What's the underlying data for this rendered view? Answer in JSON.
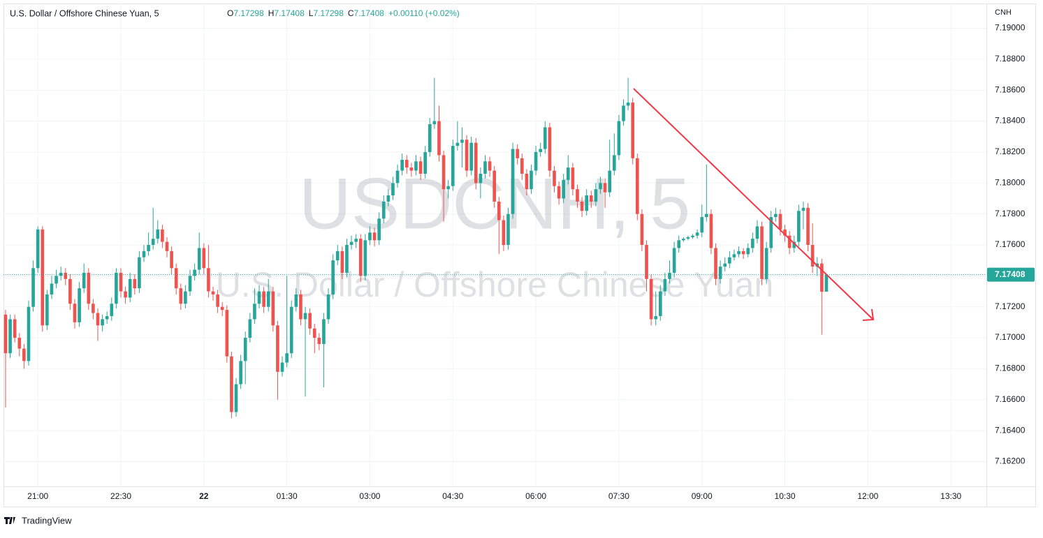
{
  "chart_data": {
    "type": "candlestick",
    "title": "U.S. Dollar / Offshore Chinese Yuan, 5",
    "legend": [
      {
        "label": "O",
        "value": 7.17298
      },
      {
        "label": "H",
        "value": 7.17408
      },
      {
        "label": "L",
        "value": 7.17298
      },
      {
        "label": "C",
        "value": 7.17408
      }
    ],
    "change": "+0.00110 (+0.02%)",
    "watermark": "USDCNH, 5",
    "watermark_subtitle": "U.S. Dollar / Offshore Chinese Yuan",
    "y_axis_label": "CNH",
    "branding": "TradingView",
    "up_color": "#26a69a",
    "down_color": "#ef5350",
    "grid": true,
    "last_price": 7.17408,
    "ylim": [
      7.1604,
      7.1916
    ],
    "yticks": [
      {
        "value": 7.162,
        "label": "7.16200"
      },
      {
        "value": 7.164,
        "label": "7.16400"
      },
      {
        "value": 7.166,
        "label": "7.16600"
      },
      {
        "value": 7.168,
        "label": "7.16800"
      },
      {
        "value": 7.17,
        "label": "7.17000"
      },
      {
        "value": 7.172,
        "label": "7.17200"
      },
      {
        "value": 7.174,
        "label": "7.17400"
      },
      {
        "value": 7.176,
        "label": "7.17600"
      },
      {
        "value": 7.178,
        "label": "7.17800"
      },
      {
        "value": 7.18,
        "label": "7.18000"
      },
      {
        "value": 7.182,
        "label": "7.18200"
      },
      {
        "value": 7.184,
        "label": "7.18400"
      },
      {
        "value": 7.186,
        "label": "7.18600"
      },
      {
        "value": 7.188,
        "label": "7.18800"
      },
      {
        "value": 7.19,
        "label": "7.19000"
      }
    ],
    "xlim": [
      -0.45,
      212.7
    ],
    "xticks": [
      {
        "value": 7,
        "label": "21:00"
      },
      {
        "value": 25,
        "label": "22:30"
      },
      {
        "value": 43,
        "label": "22"
      },
      {
        "value": 61,
        "label": "01:30"
      },
      {
        "value": 79,
        "label": "03:00"
      },
      {
        "value": 97,
        "label": "04:30"
      },
      {
        "value": 115,
        "label": "06:00"
      },
      {
        "value": 133,
        "label": "07:30"
      },
      {
        "value": 151,
        "label": "09:00"
      },
      {
        "value": 169,
        "label": "10:30"
      },
      {
        "value": 187,
        "label": "12:00"
      },
      {
        "value": 205,
        "label": "13:30"
      }
    ],
    "ohlc": [
      [
        7.1715,
        7.1718,
        7.1655,
        7.169
      ],
      [
        7.169,
        7.1715,
        7.1687,
        7.1712
      ],
      [
        7.1712,
        7.1715,
        7.1697,
        7.17
      ],
      [
        7.17,
        7.1703,
        7.1688,
        7.1693
      ],
      [
        7.1693,
        7.1696,
        7.168,
        7.1685
      ],
      [
        7.1685,
        7.1724,
        7.1682,
        7.172
      ],
      [
        7.172,
        7.175,
        7.1717,
        7.1745
      ],
      [
        7.1745,
        7.1772,
        7.1742,
        7.177
      ],
      [
        7.177,
        7.1772,
        7.1704,
        7.1708
      ],
      [
        7.1708,
        7.1731,
        7.1705,
        7.1728
      ],
      [
        7.1728,
        7.174,
        7.1725,
        7.1735
      ],
      [
        7.1735,
        7.1744,
        7.1732,
        7.174
      ],
      [
        7.174,
        7.1746,
        7.1737,
        7.1742
      ],
      [
        7.1742,
        7.1745,
        7.1734,
        7.1738
      ],
      [
        7.1738,
        7.1741,
        7.1718,
        7.1722
      ],
      [
        7.1722,
        7.1725,
        7.1706,
        7.171
      ],
      [
        7.171,
        7.1736,
        7.1707,
        7.1732
      ],
      [
        7.1732,
        7.1748,
        7.1729,
        7.1742
      ],
      [
        7.1742,
        7.1745,
        7.1718,
        7.1722
      ],
      [
        7.1722,
        7.1725,
        7.1712,
        7.1716
      ],
      [
        7.1716,
        7.1719,
        7.1698,
        7.1708
      ],
      [
        7.1708,
        7.1715,
        7.1704,
        7.1712
      ],
      [
        7.1712,
        7.1717,
        7.1709,
        7.1714
      ],
      [
        7.1714,
        7.1726,
        7.1711,
        7.1722
      ],
      [
        7.1722,
        7.1745,
        7.1719,
        7.1742
      ],
      [
        7.1742,
        7.1745,
        7.1726,
        7.173
      ],
      [
        7.173,
        7.1733,
        7.1722,
        7.1726
      ],
      [
        7.1726,
        7.1742,
        7.1723,
        7.1738
      ],
      [
        7.1738,
        7.1741,
        7.1728,
        7.1732
      ],
      [
        7.1732,
        7.1756,
        7.1729,
        7.1752
      ],
      [
        7.1752,
        7.176,
        7.1749,
        7.1756
      ],
      [
        7.1756,
        7.1768,
        7.1753,
        7.176
      ],
      [
        7.176,
        7.1784,
        7.1757,
        7.1764
      ],
      [
        7.1764,
        7.1776,
        7.1761,
        7.177
      ],
      [
        7.177,
        7.1773,
        7.1758,
        7.1762
      ],
      [
        7.1762,
        7.1765,
        7.1752,
        7.1756
      ],
      [
        7.1756,
        7.1759,
        7.1741,
        7.1745
      ],
      [
        7.1745,
        7.1748,
        7.1728,
        7.1732
      ],
      [
        7.1732,
        7.1735,
        7.1718,
        7.1722
      ],
      [
        7.1722,
        7.1734,
        7.1719,
        7.173
      ],
      [
        7.173,
        7.1744,
        7.1727,
        7.174
      ],
      [
        7.174,
        7.1748,
        7.1737,
        7.1744
      ],
      [
        7.1744,
        7.1768,
        7.1741,
        7.1758
      ],
      [
        7.1758,
        7.1761,
        7.1741,
        7.1745
      ],
      [
        7.1745,
        7.176,
        7.1726,
        7.173
      ],
      [
        7.173,
        7.1733,
        7.1724,
        7.1728
      ],
      [
        7.1728,
        7.1731,
        7.1716,
        7.172
      ],
      [
        7.172,
        7.1723,
        7.1714,
        7.1718
      ],
      [
        7.1718,
        7.1721,
        7.1684,
        7.1688
      ],
      [
        7.1688,
        7.1691,
        7.1648,
        7.1652
      ],
      [
        7.1652,
        7.1674,
        7.1649,
        7.167
      ],
      [
        7.167,
        7.1689,
        7.1667,
        7.1685
      ],
      [
        7.1685,
        7.1704,
        7.167,
        7.17
      ],
      [
        7.17,
        7.1716,
        7.1697,
        7.1712
      ],
      [
        7.1712,
        7.1732,
        7.1709,
        7.1722
      ],
      [
        7.1722,
        7.1734,
        7.1719,
        7.173
      ],
      [
        7.173,
        7.1733,
        7.1716,
        7.172
      ],
      [
        7.172,
        7.1738,
        7.1717,
        7.173
      ],
      [
        7.173,
        7.1733,
        7.1704,
        7.1708
      ],
      [
        7.1708,
        7.1711,
        7.166,
        7.1678
      ],
      [
        7.1678,
        7.1688,
        7.1675,
        7.1684
      ],
      [
        7.1684,
        7.174,
        7.1681,
        7.169
      ],
      [
        7.169,
        7.1724,
        7.1687,
        7.172
      ],
      [
        7.172,
        7.1732,
        7.1717,
        7.1728
      ],
      [
        7.1728,
        7.1731,
        7.1708,
        7.1712
      ],
      [
        7.1712,
        7.172,
        7.1662,
        7.1716
      ],
      [
        7.1716,
        7.1719,
        7.1702,
        7.1706
      ],
      [
        7.1706,
        7.1709,
        7.169,
        7.17
      ],
      [
        7.17,
        7.1703,
        7.1692,
        7.1696
      ],
      [
        7.1696,
        7.1716,
        7.1668,
        7.1712
      ],
      [
        7.1712,
        7.1732,
        7.1709,
        7.1728
      ],
      [
        7.1728,
        7.1754,
        7.1725,
        7.175
      ],
      [
        7.175,
        7.176,
        7.1747,
        7.1756
      ],
      [
        7.1756,
        7.1759,
        7.1738,
        7.1742
      ],
      [
        7.1742,
        7.1764,
        7.1739,
        7.176
      ],
      [
        7.176,
        7.1766,
        7.1757,
        7.1762
      ],
      [
        7.1762,
        7.1767,
        7.1758,
        7.1764
      ],
      [
        7.1764,
        7.1767,
        7.1736,
        7.174
      ],
      [
        7.174,
        7.1767,
        7.1737,
        7.1763
      ],
      [
        7.1763,
        7.1772,
        7.176,
        7.1768
      ],
      [
        7.1768,
        7.1771,
        7.1759,
        7.1763
      ],
      [
        7.1763,
        7.1781,
        7.176,
        7.1777
      ],
      [
        7.1777,
        7.1792,
        7.1774,
        7.1788
      ],
      [
        7.1788,
        7.1796,
        7.1785,
        7.1792
      ],
      [
        7.1792,
        7.1804,
        7.1789,
        7.18
      ],
      [
        7.18,
        7.1812,
        7.1797,
        7.1808
      ],
      [
        7.1808,
        7.1819,
        7.1805,
        7.1815
      ],
      [
        7.1815,
        7.1818,
        7.1806,
        7.181
      ],
      [
        7.181,
        7.1813,
        7.1804,
        7.1808
      ],
      [
        7.1808,
        7.1818,
        7.1805,
        7.1814
      ],
      [
        7.1814,
        7.1817,
        7.1802,
        7.1806
      ],
      [
        7.1806,
        7.1824,
        7.1803,
        7.182
      ],
      [
        7.182,
        7.1842,
        7.1817,
        7.1838
      ],
      [
        7.1838,
        7.1868,
        7.1835,
        7.184
      ],
      [
        7.184,
        7.185,
        7.1814,
        7.1818
      ],
      [
        7.1818,
        7.1821,
        7.1775,
        7.1796
      ],
      [
        7.1796,
        7.1802,
        7.179,
        7.1798
      ],
      [
        7.1798,
        7.1828,
        7.1795,
        7.1824
      ],
      [
        7.1824,
        7.184,
        7.1821,
        7.1826
      ],
      [
        7.1826,
        7.1836,
        7.181,
        7.1828
      ],
      [
        7.1828,
        7.1831,
        7.1804,
        7.1808
      ],
      [
        7.1808,
        7.183,
        7.1805,
        7.1826
      ],
      [
        7.1826,
        7.1829,
        7.1796,
        7.18
      ],
      [
        7.18,
        7.181,
        7.179,
        7.1806
      ],
      [
        7.1806,
        7.1818,
        7.1803,
        7.1814
      ],
      [
        7.1814,
        7.1817,
        7.1804,
        7.1808
      ],
      [
        7.1808,
        7.1811,
        7.1784,
        7.1788
      ],
      [
        7.1788,
        7.1791,
        7.1754,
        7.1776
      ],
      [
        7.1776,
        7.1779,
        7.1756,
        7.176
      ],
      [
        7.176,
        7.1784,
        7.1757,
        7.178
      ],
      [
        7.178,
        7.1826,
        7.1777,
        7.1822
      ],
      [
        7.1822,
        7.1825,
        7.1812,
        7.1816
      ],
      [
        7.1816,
        7.1819,
        7.1802,
        7.1806
      ],
      [
        7.1806,
        7.1809,
        7.1792,
        7.1796
      ],
      [
        7.1796,
        7.1812,
        7.1793,
        7.1808
      ],
      [
        7.1808,
        7.1824,
        7.1805,
        7.182
      ],
      [
        7.182,
        7.1826,
        7.1817,
        7.1822
      ],
      [
        7.1822,
        7.184,
        7.1819,
        7.1836
      ],
      [
        7.1836,
        7.1839,
        7.1804,
        7.1808
      ],
      [
        7.1808,
        7.1811,
        7.1794,
        7.1798
      ],
      [
        7.1798,
        7.1801,
        7.1786,
        7.179
      ],
      [
        7.179,
        7.1806,
        7.1787,
        7.1802
      ],
      [
        7.1802,
        7.1818,
        7.1799,
        7.181
      ],
      [
        7.181,
        7.1813,
        7.1792,
        7.1796
      ],
      [
        7.1796,
        7.1799,
        7.1784,
        7.1788
      ],
      [
        7.1788,
        7.1791,
        7.1778,
        7.1782
      ],
      [
        7.1782,
        7.1796,
        7.1779,
        7.1792
      ],
      [
        7.1792,
        7.1795,
        7.1784,
        7.1788
      ],
      [
        7.1788,
        7.18,
        7.1785,
        7.1796
      ],
      [
        7.1796,
        7.1804,
        7.1793,
        7.18
      ],
      [
        7.18,
        7.1803,
        7.1784,
        7.1794
      ],
      [
        7.1794,
        7.1828,
        7.1791,
        7.1808
      ],
      [
        7.1808,
        7.1832,
        7.1805,
        7.1818
      ],
      [
        7.1818,
        7.1844,
        7.1815,
        7.184
      ],
      [
        7.184,
        7.1854,
        7.1837,
        7.185
      ],
      [
        7.185,
        7.1868,
        7.1847,
        7.1852
      ],
      [
        7.1852,
        7.1855,
        7.1812,
        7.1816
      ],
      [
        7.1816,
        7.1819,
        7.1776,
        7.178
      ],
      [
        7.178,
        7.1783,
        7.1756,
        7.176
      ],
      [
        7.176,
        7.1763,
        7.173,
        7.1738
      ],
      [
        7.1738,
        7.1741,
        7.1708,
        7.1712
      ],
      [
        7.1712,
        7.173,
        7.1708,
        7.1714
      ],
      [
        7.1714,
        7.1734,
        7.1711,
        7.173
      ],
      [
        7.173,
        7.1742,
        7.1727,
        7.1738
      ],
      [
        7.1738,
        7.175,
        7.1735,
        7.1742
      ],
      [
        7.1742,
        7.1762,
        7.1739,
        7.1758
      ],
      [
        7.1758,
        7.1766,
        7.1755,
        7.1763
      ],
      [
        7.1763,
        7.1765,
        7.1762,
        7.1764
      ],
      [
        7.1764,
        7.1766,
        7.1763,
        7.1765
      ],
      [
        7.1765,
        7.1767,
        7.1764,
        7.1766
      ],
      [
        7.1766,
        7.177,
        7.1764,
        7.1768
      ],
      [
        7.1768,
        7.1786,
        7.1765,
        7.1778
      ],
      [
        7.1778,
        7.1812,
        7.1775,
        7.178
      ],
      [
        7.178,
        7.1783,
        7.1754,
        7.1758
      ],
      [
        7.1758,
        7.1761,
        7.1734,
        7.1738
      ],
      [
        7.1738,
        7.175,
        7.1735,
        7.1746
      ],
      [
        7.1746,
        7.1752,
        7.1743,
        7.1748
      ],
      [
        7.1748,
        7.1756,
        7.1745,
        7.1752
      ],
      [
        7.1752,
        7.1757,
        7.175,
        7.1754
      ],
      [
        7.1754,
        7.1759,
        7.1752,
        7.1756
      ],
      [
        7.1756,
        7.1758,
        7.1751,
        7.1754
      ],
      [
        7.1754,
        7.1761,
        7.1752,
        7.1758
      ],
      [
        7.1758,
        7.1768,
        7.1755,
        7.1764
      ],
      [
        7.1764,
        7.1776,
        7.1761,
        7.1772
      ],
      [
        7.1772,
        7.1775,
        7.1734,
        7.1738
      ],
      [
        7.1738,
        7.1762,
        7.1735,
        7.1758
      ],
      [
        7.1758,
        7.1782,
        7.1755,
        7.1778
      ],
      [
        7.1778,
        7.1784,
        7.1775,
        7.178
      ],
      [
        7.178,
        7.1783,
        7.1766,
        7.177
      ],
      [
        7.177,
        7.1773,
        7.1762,
        7.1766
      ],
      [
        7.1766,
        7.1769,
        7.1754,
        7.1758
      ],
      [
        7.1758,
        7.1766,
        7.1755,
        7.1762
      ],
      [
        7.1762,
        7.1786,
        7.1759,
        7.1782
      ],
      [
        7.1782,
        7.1788,
        7.177,
        7.1784
      ],
      [
        7.1784,
        7.1787,
        7.1756,
        7.176
      ],
      [
        7.176,
        7.1774,
        7.1742,
        7.1746
      ],
      [
        7.1746,
        7.1752,
        7.174,
        7.1748
      ],
      [
        7.1748,
        7.1751,
        7.1702,
        7.17298
      ],
      [
        7.17298,
        7.17408,
        7.17298,
        7.17408
      ]
    ]
  }
}
